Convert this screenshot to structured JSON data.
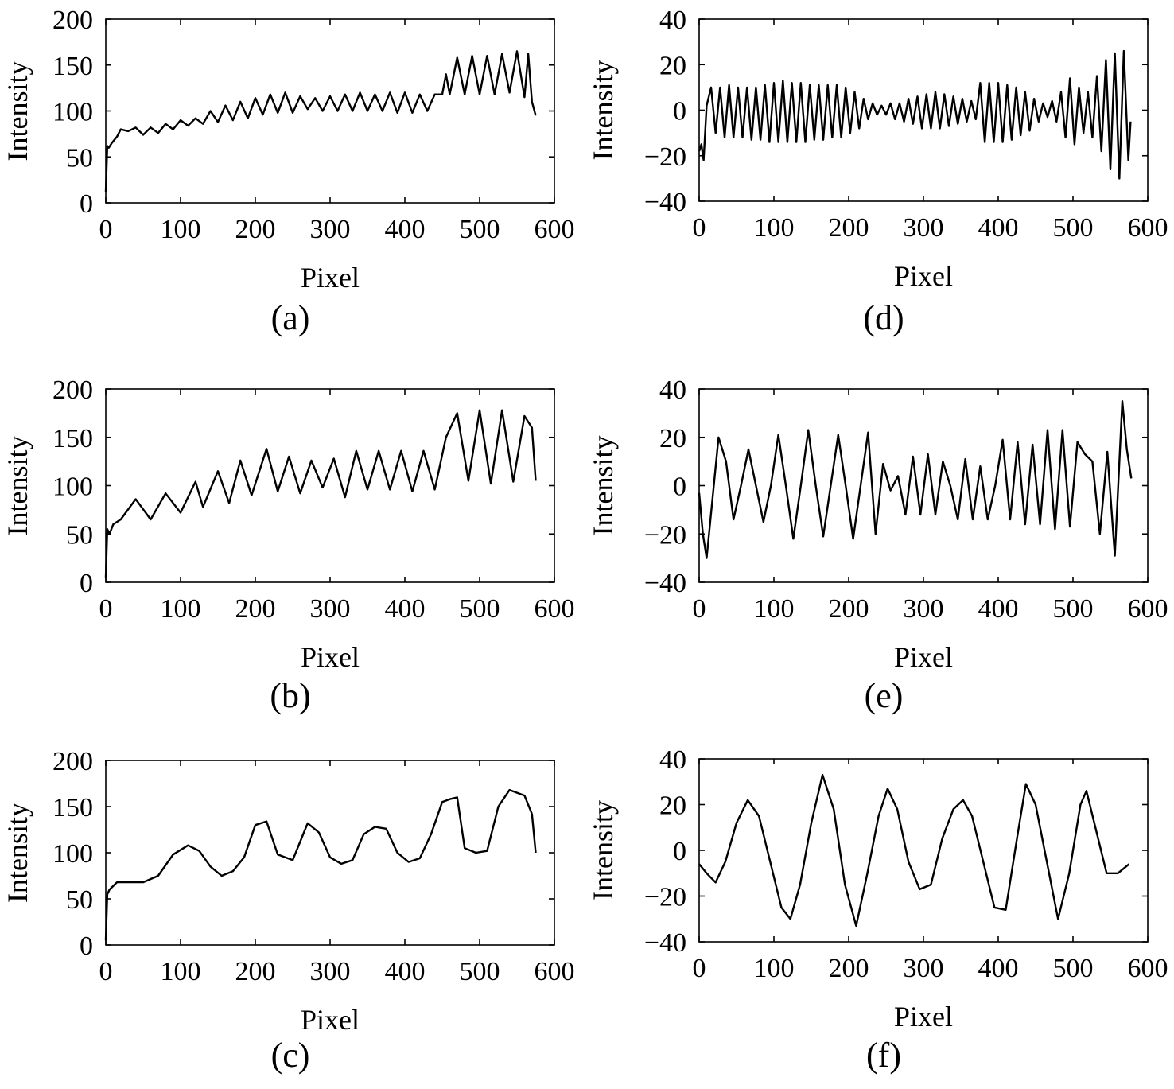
{
  "chart_data": [
    {
      "id": "a",
      "panel_label": "(a)",
      "type": "line",
      "xlabel": "Pixel",
      "ylabel": "Intensity",
      "xlim": [
        0,
        600
      ],
      "ylim": [
        0,
        200
      ],
      "xticks": [
        "0",
        "100",
        "200",
        "300",
        "400",
        "500",
        "600"
      ],
      "yticks": [
        "0",
        "50",
        "100",
        "150",
        "200"
      ],
      "grid": false,
      "series": [
        {
          "x": [
            0,
            2,
            4,
            8,
            15,
            20,
            30,
            40,
            50,
            60,
            70,
            80,
            90,
            100,
            110,
            120,
            130,
            140,
            150,
            160,
            170,
            180,
            190,
            200,
            210,
            220,
            230,
            240,
            250,
            260,
            270,
            280,
            290,
            300,
            310,
            320,
            330,
            340,
            350,
            360,
            370,
            380,
            390,
            400,
            410,
            420,
            430,
            440,
            450,
            455,
            460,
            470,
            480,
            490,
            500,
            510,
            520,
            530,
            540,
            550,
            560,
            565,
            570,
            575
          ],
          "y": [
            12,
            62,
            60,
            65,
            72,
            80,
            78,
            82,
            74,
            82,
            76,
            86,
            80,
            90,
            84,
            92,
            86,
            100,
            88,
            106,
            90,
            110,
            92,
            114,
            96,
            118,
            98,
            120,
            98,
            116,
            102,
            114,
            100,
            116,
            100,
            118,
            100,
            120,
            100,
            118,
            100,
            120,
            98,
            120,
            98,
            118,
            100,
            118,
            118,
            140,
            118,
            158,
            118,
            160,
            118,
            160,
            118,
            162,
            120,
            165,
            115,
            162,
            110,
            95
          ]
        }
      ]
    },
    {
      "id": "b",
      "panel_label": "(b)",
      "type": "line",
      "xlabel": "Pixel",
      "ylabel": "Intensity",
      "xlim": [
        0,
        600
      ],
      "ylim": [
        0,
        200
      ],
      "xticks": [
        "0",
        "100",
        "200",
        "300",
        "400",
        "500",
        "600"
      ],
      "yticks": [
        "0",
        "50",
        "100",
        "150",
        "200"
      ],
      "grid": false,
      "series": [
        {
          "x": [
            0,
            2,
            5,
            10,
            20,
            40,
            60,
            80,
            100,
            120,
            130,
            150,
            165,
            180,
            195,
            215,
            230,
            245,
            260,
            275,
            290,
            305,
            320,
            335,
            350,
            365,
            380,
            395,
            410,
            425,
            440,
            455,
            470,
            485,
            500,
            515,
            530,
            545,
            560,
            570,
            575
          ],
          "y": [
            5,
            55,
            50,
            60,
            65,
            86,
            65,
            92,
            72,
            104,
            78,
            115,
            82,
            126,
            90,
            138,
            94,
            130,
            92,
            126,
            98,
            128,
            88,
            136,
            96,
            136,
            96,
            136,
            94,
            136,
            96,
            150,
            175,
            105,
            178,
            102,
            178,
            104,
            172,
            160,
            105
          ]
        }
      ]
    },
    {
      "id": "c",
      "panel_label": "(c)",
      "type": "line",
      "xlabel": "Pixel",
      "ylabel": "Intensity",
      "xlim": [
        0,
        600
      ],
      "ylim": [
        0,
        200
      ],
      "xticks": [
        "0",
        "100",
        "200",
        "300",
        "400",
        "500",
        "600"
      ],
      "yticks": [
        "0",
        "50",
        "100",
        "150",
        "200"
      ],
      "grid": false,
      "series": [
        {
          "x": [
            0,
            2,
            5,
            15,
            30,
            50,
            70,
            90,
            110,
            125,
            140,
            155,
            170,
            185,
            200,
            215,
            230,
            250,
            270,
            285,
            300,
            315,
            330,
            345,
            360,
            375,
            390,
            405,
            420,
            435,
            450,
            460,
            470,
            480,
            495,
            510,
            525,
            540,
            560,
            570,
            575
          ],
          "y": [
            5,
            55,
            60,
            68,
            68,
            68,
            75,
            98,
            108,
            102,
            85,
            75,
            80,
            95,
            130,
            134,
            98,
            92,
            132,
            122,
            95,
            88,
            92,
            120,
            128,
            126,
            100,
            90,
            94,
            120,
            155,
            158,
            160,
            105,
            100,
            102,
            150,
            168,
            162,
            142,
            100
          ]
        }
      ]
    },
    {
      "id": "d",
      "panel_label": "(d)",
      "type": "line",
      "xlabel": "Pixel",
      "ylabel": "Intensity",
      "xlim": [
        0,
        600
      ],
      "ylim": [
        -40,
        40
      ],
      "xticks": [
        "0",
        "100",
        "200",
        "300",
        "400",
        "500",
        "600"
      ],
      "yticks": [
        "−40",
        "−20",
        "0",
        "20",
        "40"
      ],
      "grid": false,
      "series": [
        {
          "x": [
            0,
            3,
            6,
            10,
            16,
            22,
            28,
            34,
            40,
            46,
            52,
            58,
            64,
            70,
            76,
            82,
            88,
            94,
            100,
            106,
            112,
            118,
            124,
            130,
            136,
            142,
            148,
            154,
            160,
            166,
            172,
            178,
            184,
            190,
            196,
            202,
            208,
            214,
            220,
            226,
            232,
            238,
            244,
            250,
            256,
            262,
            268,
            274,
            280,
            286,
            292,
            298,
            304,
            310,
            316,
            322,
            328,
            334,
            340,
            346,
            352,
            358,
            364,
            370,
            376,
            382,
            388,
            394,
            400,
            406,
            412,
            418,
            424,
            430,
            436,
            442,
            448,
            454,
            460,
            466,
            472,
            478,
            484,
            490,
            496,
            502,
            508,
            514,
            520,
            526,
            532,
            538,
            544,
            550,
            556,
            562,
            568,
            574,
            577
          ],
          "y": [
            -18,
            -15,
            -22,
            2,
            10,
            -10,
            10,
            -12,
            11,
            -12,
            10,
            -12,
            10,
            -13,
            10,
            -13,
            11,
            -14,
            12,
            -14,
            13,
            -14,
            12,
            -14,
            12,
            -14,
            11,
            -13,
            11,
            -13,
            11,
            -12,
            11,
            -12,
            10,
            -10,
            8,
            -8,
            5,
            -4,
            3,
            -2,
            2,
            -2,
            3,
            -4,
            3,
            -5,
            5,
            -6,
            6,
            -8,
            7,
            -8,
            8,
            -8,
            7,
            -7,
            6,
            -6,
            5,
            -5,
            4,
            -4,
            12,
            -14,
            12,
            -14,
            12,
            -14,
            11,
            -13,
            10,
            -11,
            8,
            -9,
            5,
            -5,
            3,
            -3,
            4,
            -5,
            8,
            -12,
            14,
            -15,
            10,
            -10,
            8,
            -12,
            15,
            -18,
            22,
            -26,
            25,
            -30,
            26,
            -22,
            -5
          ]
        }
      ]
    },
    {
      "id": "e",
      "panel_label": "(e)",
      "type": "line",
      "xlabel": "Pixel",
      "ylabel": "Intensity",
      "xlim": [
        0,
        600
      ],
      "ylim": [
        -40,
        40
      ],
      "xticks": [
        "0",
        "100",
        "200",
        "300",
        "400",
        "500",
        "600"
      ],
      "yticks": [
        "−40",
        "−20",
        "0",
        "20",
        "40"
      ],
      "grid": false,
      "series": [
        {
          "x": [
            0,
            5,
            10,
            18,
            26,
            36,
            46,
            56,
            66,
            76,
            86,
            96,
            106,
            116,
            126,
            136,
            146,
            156,
            166,
            176,
            186,
            196,
            206,
            216,
            226,
            236,
            246,
            256,
            266,
            276,
            286,
            296,
            306,
            316,
            326,
            336,
            346,
            356,
            366,
            376,
            386,
            396,
            406,
            416,
            426,
            436,
            446,
            456,
            466,
            476,
            486,
            496,
            506,
            516,
            526,
            536,
            546,
            556,
            566,
            572,
            578
          ],
          "y": [
            -3,
            -20,
            -30,
            -5,
            20,
            10,
            -14,
            0,
            15,
            0,
            -15,
            0,
            21,
            0,
            -22,
            0,
            23,
            0,
            -21,
            0,
            21,
            0,
            -22,
            0,
            22,
            -20,
            9,
            -2,
            4,
            -12,
            12,
            -12,
            13,
            -12,
            10,
            0,
            -14,
            11,
            -14,
            8,
            -14,
            0,
            19,
            -14,
            18,
            -16,
            17,
            -16,
            23,
            -18,
            23,
            -17,
            18,
            13,
            10,
            -20,
            14,
            -29,
            35,
            15,
            3
          ]
        }
      ]
    },
    {
      "id": "f",
      "panel_label": "(f)",
      "type": "line",
      "xlabel": "Pixel",
      "ylabel": "Intensity",
      "xlim": [
        0,
        600
      ],
      "ylim": [
        -40,
        40
      ],
      "xticks": [
        "0",
        "100",
        "200",
        "300",
        "400",
        "500",
        "600"
      ],
      "yticks": [
        "−40",
        "−20",
        "0",
        "20",
        "40"
      ],
      "grid": false,
      "series": [
        {
          "x": [
            0,
            10,
            22,
            35,
            50,
            65,
            80,
            95,
            110,
            122,
            135,
            150,
            165,
            180,
            195,
            210,
            225,
            240,
            252,
            265,
            280,
            295,
            310,
            325,
            340,
            353,
            365,
            380,
            395,
            410,
            425,
            437,
            450,
            465,
            480,
            495,
            510,
            518,
            530,
            545,
            560,
            575
          ],
          "y": [
            -6,
            -10,
            -14,
            -5,
            12,
            22,
            15,
            -5,
            -25,
            -30,
            -15,
            12,
            33,
            18,
            -15,
            -33,
            -10,
            15,
            27,
            18,
            -5,
            -17,
            -15,
            5,
            18,
            22,
            15,
            -5,
            -25,
            -26,
            5,
            29,
            20,
            -5,
            -30,
            -10,
            20,
            26,
            10,
            -10,
            -10,
            -6
          ]
        }
      ]
    }
  ]
}
